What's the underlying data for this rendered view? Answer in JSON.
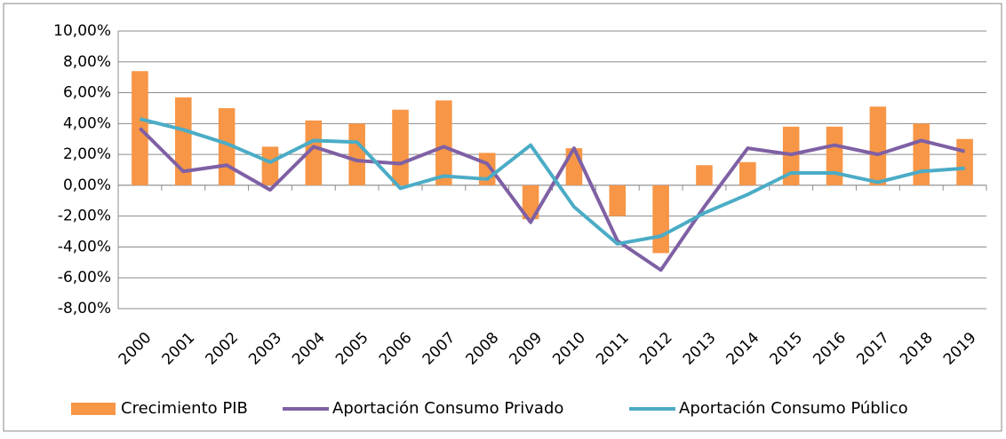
{
  "chart_data": {
    "type": "bar_line",
    "categories": [
      "2000",
      "2001",
      "2002",
      "2003",
      "2004",
      "2005",
      "2006",
      "2007",
      "2008",
      "2009",
      "2010",
      "2011",
      "2012",
      "2013",
      "2014",
      "2015",
      "2016",
      "2017",
      "2018",
      "2019"
    ],
    "series": [
      {
        "name": "Crecimiento PIB",
        "type": "bar",
        "color": "#f79646",
        "values": [
          7.4,
          5.7,
          5.0,
          2.5,
          4.2,
          4.0,
          4.9,
          5.5,
          2.1,
          -2.2,
          2.4,
          -2.0,
          -4.4,
          1.3,
          1.5,
          3.8,
          3.8,
          5.1,
          4.0,
          3.0
        ]
      },
      {
        "name": "Aportación Consumo Privado",
        "type": "line",
        "color": "#7f60a4",
        "values": [
          3.7,
          0.9,
          1.3,
          -0.3,
          2.5,
          1.6,
          1.4,
          2.5,
          1.4,
          -2.4,
          2.4,
          -3.6,
          -5.5,
          -1.4,
          2.4,
          2.0,
          2.6,
          2.0,
          2.9,
          2.2
        ]
      },
      {
        "name": "Aportación Consumo Público",
        "type": "line",
        "color": "#4bacc6",
        "values": [
          4.3,
          3.6,
          2.7,
          1.5,
          2.9,
          2.8,
          -0.2,
          0.6,
          0.4,
          2.6,
          -1.4,
          -3.8,
          -3.3,
          -1.8,
          -0.6,
          0.8,
          0.8,
          0.2,
          0.9,
          1.1
        ]
      }
    ],
    "ylim": [
      -8,
      10
    ],
    "yticks": [
      {
        "value": -8,
        "label": "-8,00%"
      },
      {
        "value": -6,
        "label": "-6,00%"
      },
      {
        "value": -4,
        "label": "-4,00%"
      },
      {
        "value": -2,
        "label": "-2,00%"
      },
      {
        "value": 0,
        "label": "0,00%"
      },
      {
        "value": 2,
        "label": "2,00%"
      },
      {
        "value": 4,
        "label": "4,00%"
      },
      {
        "value": 6,
        "label": "6,00%"
      },
      {
        "value": 8,
        "label": "8,00%"
      },
      {
        "value": 10,
        "label": "10,00%"
      }
    ],
    "grid": true,
    "legend": "bottom"
  }
}
